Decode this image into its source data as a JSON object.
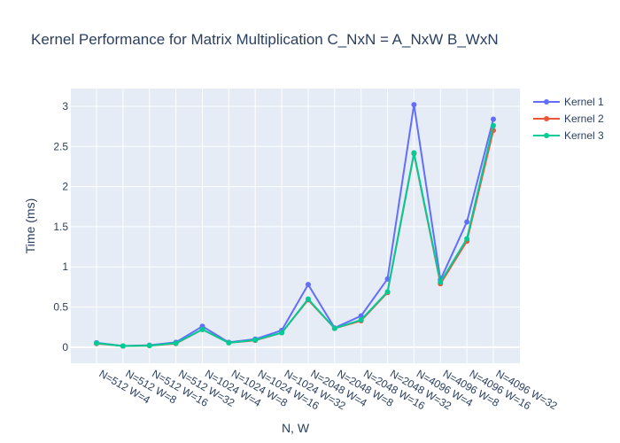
{
  "chart_data": {
    "type": "line",
    "title": "Kernel Performance for Matrix Multiplication C_NxN = A_NxW B_WxN",
    "xlabel": "N, W",
    "ylabel": "Time (ms)",
    "ylim": [
      -0.2,
      3.22
    ],
    "yticks": [
      0,
      0.5,
      1,
      1.5,
      2,
      2.5,
      3
    ],
    "ytick_labels": [
      "0",
      "0.5",
      "1",
      "1.5",
      "2",
      "2.5",
      "3"
    ],
    "categories": [
      "N=512 W=4",
      "N=512 W=8",
      "N=512 W=16",
      "N=512 W=32",
      "N=1024 W=4",
      "N=1024 W=8",
      "N=1024 W=16",
      "N=1024 W=32",
      "N=2048 W=4",
      "N=2048 W=8",
      "N=2048 W=16",
      "N=2048 W=32",
      "N=4096 W=4",
      "N=4096 W=8",
      "N=4096 W=16",
      "N=4096 W=32"
    ],
    "legend_position": "top-right",
    "series": [
      {
        "name": "Kernel 1",
        "color": "#636efa",
        "values": [
          0.055,
          0.015,
          0.025,
          0.06,
          0.26,
          0.06,
          0.1,
          0.21,
          0.78,
          0.24,
          0.39,
          0.85,
          3.02,
          0.84,
          1.56,
          2.84
        ]
      },
      {
        "name": "Kernel 2",
        "color": "#ef553b",
        "values": [
          0.045,
          0.015,
          0.02,
          0.045,
          0.22,
          0.055,
          0.085,
          0.18,
          0.59,
          0.235,
          0.33,
          0.68,
          2.41,
          0.79,
          1.32,
          2.7
        ]
      },
      {
        "name": "Kernel 3",
        "color": "#00cc96",
        "values": [
          0.05,
          0.015,
          0.02,
          0.05,
          0.22,
          0.055,
          0.09,
          0.18,
          0.6,
          0.235,
          0.34,
          0.69,
          2.42,
          0.81,
          1.35,
          2.76
        ]
      }
    ]
  }
}
